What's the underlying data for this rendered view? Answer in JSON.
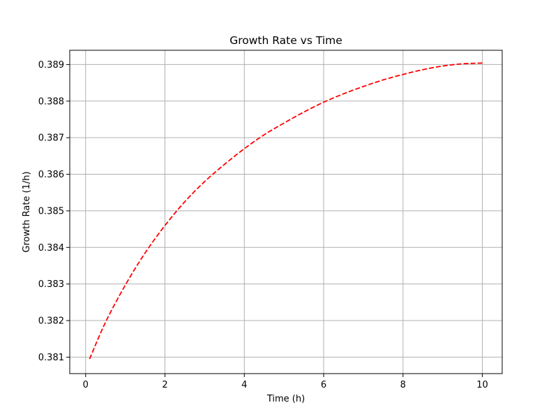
{
  "chart_data": {
    "type": "line",
    "title": "Growth Rate vs Time",
    "xlabel": "Time (h)",
    "ylabel": "Growth Rate (1/h)",
    "xlim": [
      -0.4,
      10.5
    ],
    "ylim": [
      0.38055,
      0.38939
    ],
    "xticks": [
      0,
      2,
      4,
      6,
      8,
      10
    ],
    "xtick_labels": [
      "0",
      "2",
      "4",
      "6",
      "8",
      "10"
    ],
    "yticks": [
      0.381,
      0.382,
      0.383,
      0.384,
      0.385,
      0.386,
      0.387,
      0.388,
      0.389
    ],
    "ytick_labels": [
      "0.381",
      "0.382",
      "0.383",
      "0.384",
      "0.385",
      "0.386",
      "0.387",
      "0.388",
      "0.389"
    ],
    "grid": true,
    "legend": "none",
    "series": [
      {
        "color": "#ff0000",
        "line_style": "dashed",
        "x": [
          0.1,
          0.5,
          1.0,
          1.5,
          2.0,
          2.5,
          3.0,
          3.5,
          4.0,
          4.5,
          5.0,
          5.5,
          6.0,
          6.5,
          7.0,
          7.5,
          8.0,
          8.5,
          9.0,
          9.5,
          10.0
        ],
        "y": [
          0.38095,
          0.38195,
          0.38297,
          0.38385,
          0.3846,
          0.38525,
          0.3858,
          0.38627,
          0.3867,
          0.38708,
          0.3874,
          0.3877,
          0.38797,
          0.3882,
          0.3884,
          0.38858,
          0.38873,
          0.38886,
          0.38896,
          0.38902,
          0.38904
        ]
      }
    ]
  }
}
